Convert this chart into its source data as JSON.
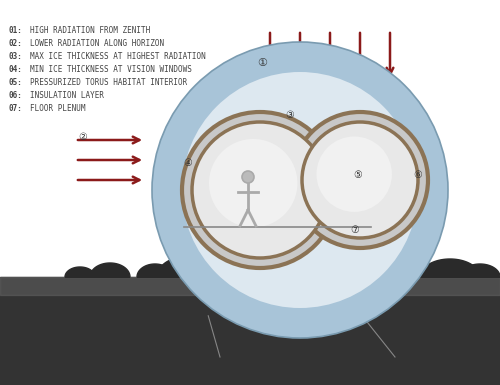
{
  "bg_color": "#ffffff",
  "legend_items": [
    [
      "01:",
      "HIGH RADIATION FROM ZENITH"
    ],
    [
      "02:",
      "LOWER RADIATION ALONG HORIZON"
    ],
    [
      "03:",
      "MAX ICE THICKNESS AT HIGHEST RADIATION"
    ],
    [
      "04:",
      "MIN ICE THICKNESS AT VISION WINDOWS"
    ],
    [
      "05:",
      "PRESSURIZED TORUS HABITAT INTERIOR"
    ],
    [
      "06:",
      "INSULATION LAYER"
    ],
    [
      "07:",
      "FLOOR PLENUM"
    ]
  ],
  "arrow_color": "#8B1A1A",
  "ground_color": "#555555",
  "ground_dark": "#333333",
  "ice_outer_color": "#a8c4d8",
  "ice_inner_color": "#c8dce8",
  "torus_bg": "#d8d8d8",
  "torus_ring": "#8B7355",
  "label_color": "#333333",
  "ground_light": "#666666",
  "rock_color": "#2a2a2a"
}
